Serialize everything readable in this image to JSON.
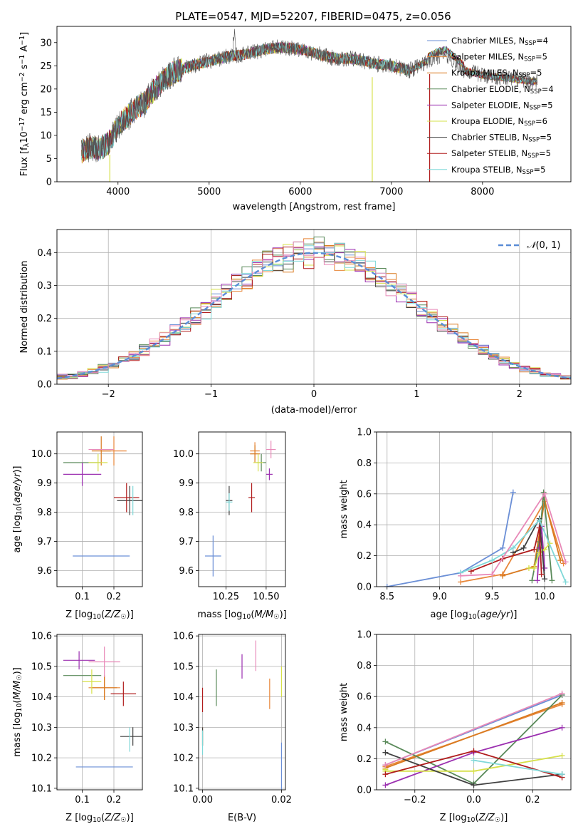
{
  "figure_title": "PLATE=0547, MJD=52207, FIBERID=0475, z=0.056",
  "models": [
    {
      "name": "Chabrier MILES",
      "lib": "MILES",
      "imf": "Chabrier",
      "nssp": "4",
      "color": "#6b8fd6"
    },
    {
      "name": "Salpeter MILES",
      "lib": "MILES",
      "imf": "Salpeter",
      "nssp": "5",
      "color": "#e8873a"
    },
    {
      "name": "Kroupa MILES",
      "lib": "MILES",
      "imf": "Kroupa",
      "nssp": "5",
      "color": "#d97a20"
    },
    {
      "name": "Chabrier ELODIE",
      "lib": "ELODIE",
      "imf": "Chabrier",
      "nssp": "4",
      "color": "#5a8a5a"
    },
    {
      "name": "Salpeter ELODIE",
      "lib": "ELODIE",
      "imf": "Salpeter",
      "nssp": "5",
      "color": "#9b2fb0"
    },
    {
      "name": "Kroupa ELODIE",
      "lib": "ELODIE",
      "imf": "Kroupa",
      "nssp": "6",
      "color": "#d6e04a"
    },
    {
      "name": "Chabrier STELIB",
      "lib": "STELIB",
      "imf": "Chabrier",
      "nssp": "5",
      "color": "#404040"
    },
    {
      "name": "Salpeter STELIB",
      "lib": "STELIB",
      "imf": "Salpeter",
      "nssp": "5",
      "color": "#b01c1c"
    },
    {
      "name": "Kroupa STELIB",
      "lib": "STELIB",
      "imf": "Kroupa",
      "nssp": "5",
      "color": "#7fd8d8"
    }
  ],
  "extra_color": "#e889b8",
  "chart_data": [
    {
      "id": "spectrum",
      "type": "line",
      "xlabel": "wavelength [Angstrom, rest frame]",
      "ylabel": "Flux [f_λ 10^-17 erg cm^-2 s^-1 A^-1]",
      "ylabel_main": "Flux [f",
      "ylabel_rest": "10",
      "ylabel_units": " erg cm",
      "xlim": [
        3330,
        8970
      ],
      "ylim": [
        0,
        33.5
      ],
      "xticks": [
        4000,
        5000,
        6000,
        7000,
        8000
      ],
      "yticks": [
        0,
        5,
        10,
        15,
        20,
        25,
        30
      ],
      "legend_position": "upper-right",
      "continuum_anchors": [
        [
          3600,
          6.5
        ],
        [
          3700,
          7.5
        ],
        [
          3800,
          7.0
        ],
        [
          3900,
          8.5
        ],
        [
          4000,
          12
        ],
        [
          4100,
          14
        ],
        [
          4200,
          16
        ],
        [
          4300,
          17
        ],
        [
          4400,
          20
        ],
        [
          4500,
          22
        ],
        [
          4600,
          23.5
        ],
        [
          4800,
          25
        ],
        [
          5000,
          26
        ],
        [
          5200,
          27
        ],
        [
          5400,
          27.5
        ],
        [
          5600,
          28.5
        ],
        [
          5800,
          29
        ],
        [
          6000,
          28.5
        ],
        [
          6200,
          27.5
        ],
        [
          6400,
          26.5
        ],
        [
          6600,
          26.5
        ],
        [
          6800,
          25.5
        ],
        [
          7000,
          25
        ],
        [
          7200,
          24
        ],
        [
          7400,
          26
        ],
        [
          7500,
          27
        ],
        [
          7600,
          27.5
        ],
        [
          7800,
          24
        ],
        [
          8000,
          23
        ],
        [
          8200,
          22.5
        ],
        [
          8400,
          22
        ],
        [
          8600,
          21.5
        ]
      ]
    },
    {
      "id": "residuals",
      "type": "step-histogram",
      "xlabel": "(data-model)/error",
      "ylabel": "Normed distribution",
      "xlim": [
        -2.5,
        2.5
      ],
      "ylim": [
        0,
        0.47
      ],
      "xticks": [
        -2,
        -1,
        0,
        1,
        2
      ],
      "yticks": [
        0.0,
        0.1,
        0.2,
        0.3,
        0.4
      ],
      "grid": true,
      "legend_position": "upper-right",
      "gaussian_label": "N(0,1)",
      "gaussian": {
        "mu": 0,
        "sigma": 1
      },
      "bin_width": 0.1
    },
    {
      "id": "age_vs_Z",
      "type": "errorbar",
      "xlabel": "Z [log10(Z/Z☉)]",
      "ylabel": "age [log10(age/yr)]",
      "xlim": [
        0.02,
        0.29
      ],
      "ylim": [
        9.545,
        10.075
      ],
      "xticks": [
        0.1,
        0.2
      ],
      "yticks": [
        9.6,
        9.7,
        9.8,
        9.9,
        10.0
      ],
      "grid": true,
      "points": [
        {
          "x": 0.16,
          "y": 9.65,
          "xerr": 0.09,
          "yerr": 0.0,
          "c": 0
        },
        {
          "x": 0.2,
          "y": 10.01,
          "xerr": 0.04,
          "yerr": 0.05,
          "c": 1
        },
        {
          "x": 0.16,
          "y": 10.01,
          "xerr": 0.03,
          "yerr": 0.05,
          "c": 2
        },
        {
          "x": 0.1,
          "y": 9.97,
          "xerr": 0.06,
          "yerr": 0.0,
          "c": 3
        },
        {
          "x": 0.1,
          "y": 9.93,
          "xerr": 0.06,
          "yerr": 0.04,
          "c": 4
        },
        {
          "x": 0.15,
          "y": 9.97,
          "xerr": 0.03,
          "yerr": 0.03,
          "c": 5
        },
        {
          "x": 0.25,
          "y": 9.84,
          "xerr": 0.04,
          "yerr": 0.05,
          "c": 6
        },
        {
          "x": 0.24,
          "y": 9.85,
          "xerr": 0.04,
          "yerr": 0.05,
          "c": 7
        },
        {
          "x": 0.26,
          "y": 9.84,
          "xerr": 0.0,
          "yerr": 0.05,
          "c": 8
        },
        {
          "x": 0.16,
          "y": 10.015,
          "xerr": 0.04,
          "yerr": 0.0,
          "c": 9
        }
      ]
    },
    {
      "id": "age_vs_mass",
      "type": "errorbar",
      "xlabel": "mass [log10(M/M☉)]",
      "xlim": [
        10.08,
        10.62
      ],
      "ylim": [
        9.545,
        10.075
      ],
      "xticks": [
        10.25,
        10.5
      ],
      "yticks": [
        9.6,
        9.7,
        9.8,
        9.9,
        10.0
      ],
      "grid": true,
      "points": [
        {
          "x": 10.17,
          "y": 9.65,
          "xerr": 0.05,
          "yerr": 0.07,
          "c": 0
        },
        {
          "x": 10.43,
          "y": 10.01,
          "xerr": 0.03,
          "yerr": 0.03,
          "c": 1
        },
        {
          "x": 10.43,
          "y": 10.0,
          "xerr": 0.03,
          "yerr": 0.03,
          "c": 2
        },
        {
          "x": 10.47,
          "y": 9.97,
          "xerr": 0.03,
          "yerr": 0.03,
          "c": 3
        },
        {
          "x": 10.52,
          "y": 9.93,
          "xerr": 0.02,
          "yerr": 0.02,
          "c": 4
        },
        {
          "x": 10.45,
          "y": 9.97,
          "xerr": 0.03,
          "yerr": 0.03,
          "c": 5
        },
        {
          "x": 10.27,
          "y": 9.84,
          "xerr": 0.02,
          "yerr": 0.05,
          "c": 6
        },
        {
          "x": 10.41,
          "y": 9.85,
          "xerr": 0.02,
          "yerr": 0.05,
          "c": 7
        },
        {
          "x": 10.27,
          "y": 9.835,
          "xerr": 0.02,
          "yerr": 0.03,
          "c": 8
        },
        {
          "x": 10.53,
          "y": 10.015,
          "xerr": 0.03,
          "yerr": 0.03,
          "c": 9
        }
      ]
    },
    {
      "id": "massweight_vs_age",
      "type": "line",
      "xlabel": "age [log10(age/yr)]",
      "ylabel": "mass weight",
      "xlim": [
        8.4,
        10.25
      ],
      "ylim": [
        0,
        1.0
      ],
      "xticks": [
        8.5,
        9.0,
        9.5,
        10.0
      ],
      "yticks": [
        0.0,
        0.2,
        0.4,
        0.6,
        0.8,
        1.0
      ],
      "grid": true,
      "series": [
        {
          "c": 0,
          "x": [
            8.5,
            9.2,
            9.6,
            9.7
          ],
          "y": [
            0.0,
            0.09,
            0.25,
            0.61
          ]
        },
        {
          "c": 1,
          "x": [
            9.2,
            9.6,
            10.0,
            10.18
          ],
          "y": [
            0.03,
            0.08,
            0.55,
            0.15
          ]
        },
        {
          "c": 2,
          "x": [
            9.6,
            9.9,
            10.0,
            10.15
          ],
          "y": [
            0.07,
            0.13,
            0.56,
            0.17
          ]
        },
        {
          "c": 3,
          "x": [
            9.88,
            9.95,
            9.99,
            10.07
          ],
          "y": [
            0.04,
            0.29,
            0.61,
            0.04
          ]
        },
        {
          "c": 4,
          "x": [
            9.93,
            9.95,
            9.97,
            10.0
          ],
          "y": [
            0.04,
            0.25,
            0.39,
            0.12
          ]
        },
        {
          "c": 5,
          "x": [
            9.85,
            9.9,
            9.95,
            10.0,
            10.05
          ],
          "y": [
            0.12,
            0.12,
            0.22,
            0.24,
            0.28
          ]
        },
        {
          "c": 6,
          "x": [
            9.7,
            9.8,
            9.95,
            10.0
          ],
          "y": [
            0.22,
            0.25,
            0.44,
            0.05
          ]
        },
        {
          "c": 7,
          "x": [
            9.3,
            9.6,
            9.9,
            9.95,
            9.97
          ],
          "y": [
            0.1,
            0.18,
            0.24,
            0.38,
            0.08
          ]
        },
        {
          "c": 8,
          "x": [
            9.2,
            9.5,
            9.7,
            9.95,
            10.2
          ],
          "y": [
            0.09,
            0.17,
            0.25,
            0.43,
            0.03
          ]
        },
        {
          "c": 9,
          "x": [
            9.2,
            9.5,
            10.0,
            10.2
          ],
          "y": [
            0.07,
            0.08,
            0.6,
            0.16
          ]
        }
      ]
    },
    {
      "id": "mass_vs_Z",
      "type": "errorbar",
      "xlabel": "Z [log10(Z/Z☉)]",
      "ylabel": "mass [log10(M/M☉)]",
      "xlim": [
        0.02,
        0.29
      ],
      "ylim": [
        10.095,
        10.605
      ],
      "xticks": [
        0.1,
        0.2
      ],
      "yticks": [
        10.1,
        10.2,
        10.3,
        10.4,
        10.5,
        10.6
      ],
      "grid": true,
      "points": [
        {
          "x": 0.17,
          "y": 10.17,
          "xerr": 0.09,
          "yerr": 0.0,
          "c": 0
        },
        {
          "x": 0.17,
          "y": 10.43,
          "xerr": 0.05,
          "yerr": 0.04,
          "c": 1
        },
        {
          "x": 0.17,
          "y": 10.43,
          "xerr": 0.04,
          "yerr": 0.04,
          "c": 2
        },
        {
          "x": 0.1,
          "y": 10.47,
          "xerr": 0.06,
          "yerr": 0.0,
          "c": 3
        },
        {
          "x": 0.09,
          "y": 10.52,
          "xerr": 0.05,
          "yerr": 0.03,
          "c": 4
        },
        {
          "x": 0.13,
          "y": 10.45,
          "xerr": 0.03,
          "yerr": 0.04,
          "c": 5
        },
        {
          "x": 0.26,
          "y": 10.27,
          "xerr": 0.04,
          "yerr": 0.03,
          "c": 6
        },
        {
          "x": 0.23,
          "y": 10.41,
          "xerr": 0.04,
          "yerr": 0.04,
          "c": 7
        },
        {
          "x": 0.25,
          "y": 10.26,
          "xerr": 0.0,
          "yerr": 0.04,
          "c": 8
        },
        {
          "x": 0.17,
          "y": 10.515,
          "xerr": 0.05,
          "yerr": 0.05,
          "c": 9
        }
      ]
    },
    {
      "id": "mass_vs_EBV",
      "type": "errorbar",
      "xlabel": "E(B-V)",
      "xlim": [
        -0.001,
        0.021
      ],
      "ylim": [
        10.095,
        10.605
      ],
      "xticks": [
        0.0,
        0.02
      ],
      "yticks": [
        10.1,
        10.2,
        10.3,
        10.4,
        10.5,
        10.6
      ],
      "grid": true,
      "points": [
        {
          "x": 0.02,
          "y": 10.17,
          "xerr": 0,
          "yerr": 0.08,
          "c": 0
        },
        {
          "x": 0.017,
          "y": 10.41,
          "xerr": 0,
          "yerr": 0.05,
          "c": 1
        },
        {
          "x": 0.0,
          "y": 10.27,
          "xerr": 0,
          "yerr": 0.03,
          "c": 2
        },
        {
          "x": 0.0035,
          "y": 10.43,
          "xerr": 0,
          "yerr": 0.06,
          "c": 3
        },
        {
          "x": 0.01,
          "y": 10.5,
          "xerr": 0,
          "yerr": 0.04,
          "c": 4
        },
        {
          "x": 0.02,
          "y": 10.45,
          "xerr": 0,
          "yerr": 0.05,
          "c": 5
        },
        {
          "x": 0.0,
          "y": 10.27,
          "xerr": 0,
          "yerr": 0.03,
          "c": 6
        },
        {
          "x": 0.0,
          "y": 10.39,
          "xerr": 0,
          "yerr": 0.04,
          "c": 7
        },
        {
          "x": 0.0,
          "y": 10.25,
          "xerr": 0,
          "yerr": 0.04,
          "c": 8
        },
        {
          "x": 0.0135,
          "y": 10.535,
          "xerr": 0,
          "yerr": 0.05,
          "c": 9
        }
      ]
    },
    {
      "id": "massweight_vs_Z",
      "type": "line",
      "xlabel": "Z [log10(Z/Z☉)]",
      "ylabel": "mass weight",
      "xlim": [
        -0.33,
        0.33
      ],
      "ylim": [
        0,
        1.0
      ],
      "xticks": [
        -0.2,
        0.0,
        0.2
      ],
      "yticks": [
        0.0,
        0.2,
        0.4,
        0.6,
        0.8,
        1.0
      ],
      "grid": true,
      "series": [
        {
          "c": 0,
          "x": [
            -0.3,
            0.3
          ],
          "y": [
            0.16,
            0.61
          ]
        },
        {
          "c": 1,
          "x": [
            -0.3,
            0.3
          ],
          "y": [
            0.15,
            0.55
          ]
        },
        {
          "c": 2,
          "x": [
            -0.3,
            0.3
          ],
          "y": [
            0.14,
            0.56
          ]
        },
        {
          "c": 3,
          "x": [
            -0.3,
            0.0,
            0.3
          ],
          "y": [
            0.31,
            0.04,
            0.61
          ]
        },
        {
          "c": 4,
          "x": [
            -0.3,
            0.0,
            0.3
          ],
          "y": [
            0.03,
            0.24,
            0.4
          ]
        },
        {
          "c": 5,
          "x": [
            -0.3,
            -0.3,
            0.0,
            0.3
          ],
          "y": [
            0.13,
            0.12,
            0.12,
            0.22
          ]
        },
        {
          "c": 6,
          "x": [
            -0.3,
            0.0,
            0.3
          ],
          "y": [
            0.24,
            0.03,
            0.1
          ]
        },
        {
          "c": 7,
          "x": [
            -0.3,
            0.0,
            0.3
          ],
          "y": [
            0.1,
            0.25,
            0.08
          ]
        },
        {
          "c": 8,
          "x": [
            0.0,
            0.3
          ],
          "y": [
            0.19,
            0.1
          ]
        },
        {
          "c": 9,
          "x": [
            -0.3,
            0.3
          ],
          "y": [
            0.16,
            0.62
          ]
        }
      ]
    }
  ]
}
